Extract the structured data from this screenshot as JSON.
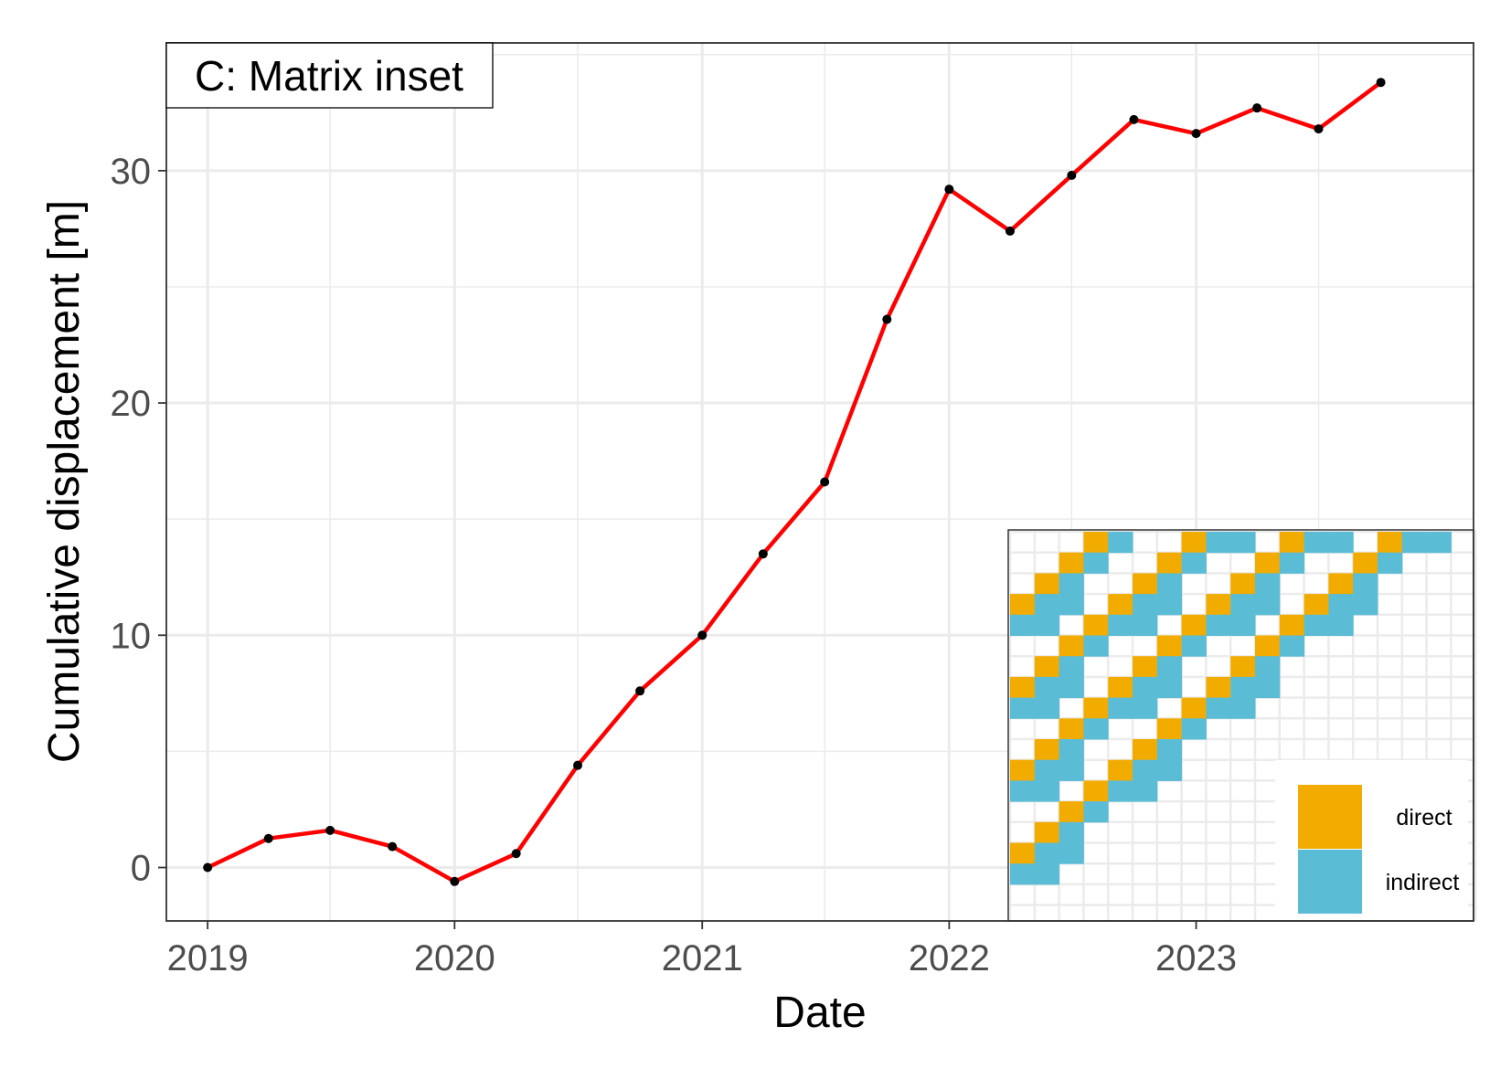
{
  "chart_data": {
    "type": "line",
    "tag": "C: Matrix inset",
    "xlabel": "Date",
    "ylabel": "Cumulative displacement [m]",
    "x_ticks": [
      "2019",
      "2020",
      "2021",
      "2022",
      "2023"
    ],
    "y_ticks": [
      "0",
      "10",
      "20",
      "30"
    ],
    "xlim": [
      "2018-11-01",
      "2024-02-15"
    ],
    "ylim": [
      -2.3,
      35.5
    ],
    "grid": true,
    "colors": {
      "line": "#ff0000",
      "point": "#000000",
      "direct": "#f2ac00",
      "indirect": "#5bbcd6",
      "grid": "#ebebeb",
      "axis_text": "#4d4d4d"
    },
    "x": [
      "2019-01-01",
      "2019-04-01",
      "2019-07-01",
      "2019-10-01",
      "2020-01-01",
      "2020-04-01",
      "2020-07-01",
      "2020-10-01",
      "2021-01-01",
      "2021-04-01",
      "2021-07-01",
      "2021-10-01",
      "2022-01-01",
      "2022-04-01",
      "2022-07-01",
      "2022-10-01",
      "2023-01-01",
      "2023-04-01",
      "2023-07-01",
      "2023-10-01"
    ],
    "y": [
      0.0,
      1.25,
      1.6,
      0.9,
      -0.6,
      0.6,
      4.4,
      7.6,
      10.0,
      13.5,
      16.6,
      23.6,
      29.2,
      27.4,
      29.8,
      32.2,
      31.6,
      32.7,
      31.8,
      33.8
    ],
    "inset": {
      "type": "heatmap",
      "description_categories": [
        "direct",
        "indirect"
      ],
      "legend": [
        "direct",
        "indirect"
      ],
      "rows": 17,
      "cols": 19,
      "cells": [
        [
          0,
          3,
          "direct"
        ],
        [
          0,
          4,
          "indirect"
        ],
        [
          0,
          7,
          "direct"
        ],
        [
          0,
          8,
          "indirect"
        ],
        [
          0,
          9,
          "indirect"
        ],
        [
          0,
          11,
          "direct"
        ],
        [
          0,
          12,
          "indirect"
        ],
        [
          0,
          13,
          "indirect"
        ],
        [
          0,
          15,
          "direct"
        ],
        [
          0,
          16,
          "indirect"
        ],
        [
          0,
          17,
          "indirect"
        ],
        [
          1,
          2,
          "direct"
        ],
        [
          1,
          3,
          "indirect"
        ],
        [
          1,
          6,
          "direct"
        ],
        [
          1,
          7,
          "indirect"
        ],
        [
          1,
          10,
          "direct"
        ],
        [
          1,
          11,
          "indirect"
        ],
        [
          1,
          14,
          "direct"
        ],
        [
          1,
          15,
          "indirect"
        ],
        [
          2,
          1,
          "direct"
        ],
        [
          2,
          2,
          "indirect"
        ],
        [
          2,
          5,
          "direct"
        ],
        [
          2,
          6,
          "indirect"
        ],
        [
          2,
          9,
          "direct"
        ],
        [
          2,
          10,
          "indirect"
        ],
        [
          2,
          13,
          "direct"
        ],
        [
          2,
          14,
          "indirect"
        ],
        [
          3,
          0,
          "direct"
        ],
        [
          3,
          1,
          "indirect"
        ],
        [
          3,
          2,
          "indirect"
        ],
        [
          3,
          4,
          "direct"
        ],
        [
          3,
          5,
          "indirect"
        ],
        [
          3,
          6,
          "indirect"
        ],
        [
          3,
          8,
          "direct"
        ],
        [
          3,
          9,
          "indirect"
        ],
        [
          3,
          10,
          "indirect"
        ],
        [
          3,
          12,
          "direct"
        ],
        [
          3,
          13,
          "indirect"
        ],
        [
          3,
          14,
          "indirect"
        ],
        [
          4,
          0,
          "indirect"
        ],
        [
          4,
          1,
          "indirect"
        ],
        [
          4,
          3,
          "direct"
        ],
        [
          4,
          4,
          "indirect"
        ],
        [
          4,
          5,
          "indirect"
        ],
        [
          4,
          7,
          "direct"
        ],
        [
          4,
          8,
          "indirect"
        ],
        [
          4,
          9,
          "indirect"
        ],
        [
          4,
          11,
          "direct"
        ],
        [
          4,
          12,
          "indirect"
        ],
        [
          4,
          13,
          "indirect"
        ],
        [
          5,
          2,
          "direct"
        ],
        [
          5,
          3,
          "indirect"
        ],
        [
          5,
          6,
          "direct"
        ],
        [
          5,
          7,
          "indirect"
        ],
        [
          5,
          10,
          "direct"
        ],
        [
          5,
          11,
          "indirect"
        ],
        [
          6,
          1,
          "direct"
        ],
        [
          6,
          2,
          "indirect"
        ],
        [
          6,
          5,
          "direct"
        ],
        [
          6,
          6,
          "indirect"
        ],
        [
          6,
          9,
          "direct"
        ],
        [
          6,
          10,
          "indirect"
        ],
        [
          7,
          0,
          "direct"
        ],
        [
          7,
          1,
          "indirect"
        ],
        [
          7,
          2,
          "indirect"
        ],
        [
          7,
          4,
          "direct"
        ],
        [
          7,
          5,
          "indirect"
        ],
        [
          7,
          6,
          "indirect"
        ],
        [
          7,
          8,
          "direct"
        ],
        [
          7,
          9,
          "indirect"
        ],
        [
          7,
          10,
          "indirect"
        ],
        [
          8,
          0,
          "indirect"
        ],
        [
          8,
          1,
          "indirect"
        ],
        [
          8,
          3,
          "direct"
        ],
        [
          8,
          4,
          "indirect"
        ],
        [
          8,
          5,
          "indirect"
        ],
        [
          8,
          7,
          "direct"
        ],
        [
          8,
          8,
          "indirect"
        ],
        [
          8,
          9,
          "indirect"
        ],
        [
          9,
          2,
          "direct"
        ],
        [
          9,
          3,
          "indirect"
        ],
        [
          9,
          6,
          "direct"
        ],
        [
          9,
          7,
          "indirect"
        ],
        [
          10,
          1,
          "direct"
        ],
        [
          10,
          2,
          "indirect"
        ],
        [
          10,
          5,
          "direct"
        ],
        [
          10,
          6,
          "indirect"
        ],
        [
          11,
          0,
          "direct"
        ],
        [
          11,
          1,
          "indirect"
        ],
        [
          11,
          2,
          "indirect"
        ],
        [
          11,
          4,
          "direct"
        ],
        [
          11,
          5,
          "indirect"
        ],
        [
          11,
          6,
          "indirect"
        ],
        [
          12,
          0,
          "indirect"
        ],
        [
          12,
          1,
          "indirect"
        ],
        [
          12,
          3,
          "direct"
        ],
        [
          12,
          4,
          "indirect"
        ],
        [
          12,
          5,
          "indirect"
        ],
        [
          13,
          2,
          "direct"
        ],
        [
          13,
          3,
          "indirect"
        ],
        [
          14,
          1,
          "direct"
        ],
        [
          14,
          2,
          "indirect"
        ],
        [
          15,
          0,
          "direct"
        ],
        [
          15,
          1,
          "indirect"
        ],
        [
          15,
          2,
          "indirect"
        ],
        [
          16,
          0,
          "indirect"
        ],
        [
          16,
          1,
          "indirect"
        ]
      ]
    }
  }
}
